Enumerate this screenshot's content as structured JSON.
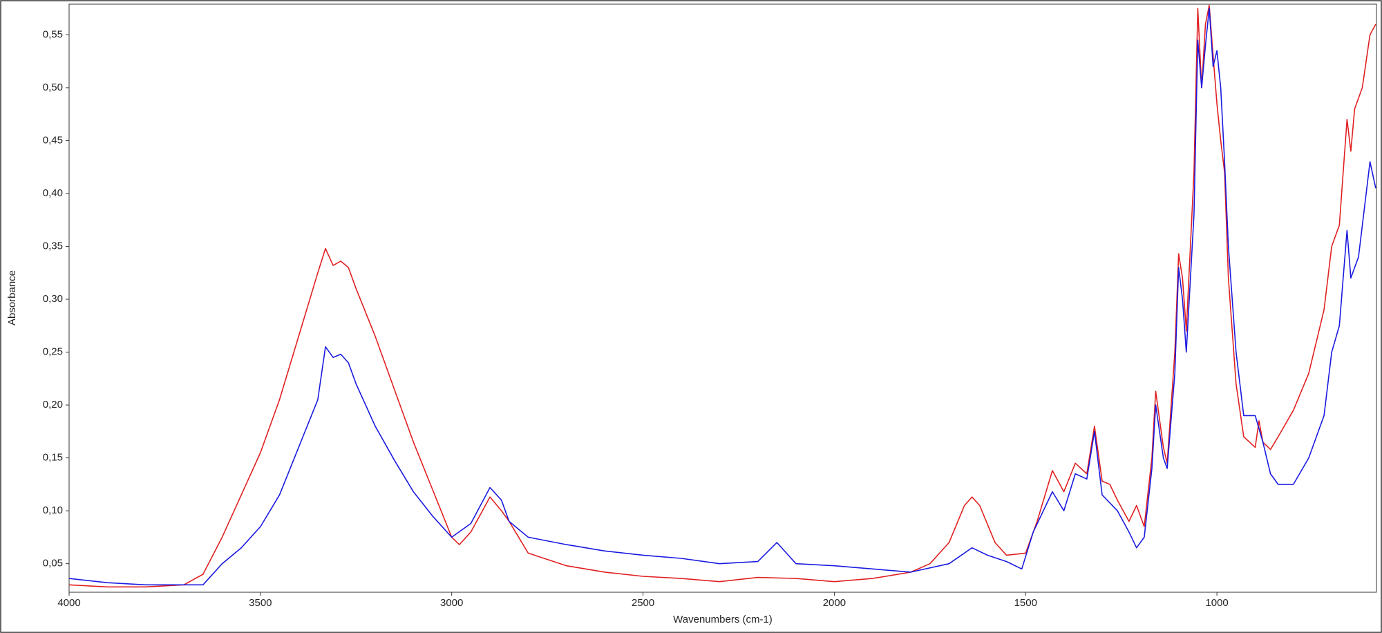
{
  "chart_data": {
    "type": "line",
    "x_label": "Wavenumbers (cm-1)",
    "y_label": "Absorbance",
    "xlim": [
      4000,
      583
    ],
    "xticks": [
      4000,
      3500,
      3000,
      2500,
      2000,
      1500,
      1000
    ],
    "ylim": [
      0.023,
      0.579
    ],
    "yticks": [
      {
        "value": 0.05,
        "label": "0,05"
      },
      {
        "value": 0.1,
        "label": "0,10"
      },
      {
        "value": 0.15,
        "label": "0,15"
      },
      {
        "value": 0.2,
        "label": "0,20"
      },
      {
        "value": 0.25,
        "label": "0,25"
      },
      {
        "value": 0.3,
        "label": "0,30"
      },
      {
        "value": 0.35,
        "label": "0,35"
      },
      {
        "value": 0.4,
        "label": "0,40"
      },
      {
        "value": 0.45,
        "label": "0,45"
      },
      {
        "value": 0.5,
        "label": "0,50"
      },
      {
        "value": 0.55,
        "label": "0,55"
      }
    ],
    "series": [
      {
        "color": "#e02020",
        "x": [
          4000,
          3900,
          3800,
          3700,
          3650,
          3600,
          3550,
          3500,
          3450,
          3400,
          3350,
          3330,
          3310,
          3290,
          3270,
          3250,
          3200,
          3150,
          3100,
          3050,
          3000,
          2980,
          2950,
          2900,
          2870,
          2850,
          2800,
          2700,
          2600,
          2500,
          2400,
          2300,
          2200,
          2100,
          2000,
          1900,
          1800,
          1750,
          1700,
          1660,
          1640,
          1620,
          1580,
          1550,
          1500,
          1470,
          1430,
          1400,
          1370,
          1340,
          1320,
          1300,
          1280,
          1260,
          1230,
          1210,
          1190,
          1170,
          1160,
          1140,
          1130,
          1110,
          1100,
          1090,
          1080,
          1060,
          1050,
          1040,
          1030,
          1020,
          1010,
          1000,
          990,
          980,
          970,
          950,
          930,
          900,
          890,
          880,
          860,
          840,
          800,
          760,
          720,
          700,
          680,
          670,
          660,
          650,
          640,
          620,
          600,
          585
        ],
        "values": [
          0.03,
          0.028,
          0.028,
          0.03,
          0.04,
          0.075,
          0.115,
          0.155,
          0.205,
          0.265,
          0.325,
          0.348,
          0.332,
          0.336,
          0.33,
          0.31,
          0.265,
          0.215,
          0.165,
          0.12,
          0.075,
          0.068,
          0.08,
          0.113,
          0.1,
          0.09,
          0.06,
          0.048,
          0.042,
          0.038,
          0.036,
          0.033,
          0.037,
          0.036,
          0.033,
          0.036,
          0.042,
          0.05,
          0.07,
          0.105,
          0.113,
          0.105,
          0.07,
          0.058,
          0.06,
          0.09,
          0.138,
          0.118,
          0.145,
          0.135,
          0.18,
          0.128,
          0.125,
          0.11,
          0.09,
          0.105,
          0.085,
          0.15,
          0.213,
          0.16,
          0.145,
          0.25,
          0.343,
          0.32,
          0.27,
          0.42,
          0.575,
          0.5,
          0.56,
          0.578,
          0.53,
          0.485,
          0.45,
          0.42,
          0.32,
          0.22,
          0.17,
          0.16,
          0.185,
          0.165,
          0.158,
          0.17,
          0.195,
          0.23,
          0.29,
          0.35,
          0.37,
          0.42,
          0.47,
          0.44,
          0.48,
          0.5,
          0.55,
          0.56
        ]
      },
      {
        "color": "#1a1ae0",
        "x": [
          4000,
          3900,
          3800,
          3700,
          3650,
          3600,
          3550,
          3500,
          3450,
          3400,
          3350,
          3330,
          3310,
          3290,
          3270,
          3250,
          3200,
          3150,
          3100,
          3050,
          3000,
          2950,
          2900,
          2870,
          2850,
          2800,
          2700,
          2600,
          2500,
          2400,
          2300,
          2200,
          2150,
          2100,
          2000,
          1900,
          1800,
          1700,
          1640,
          1600,
          1550,
          1510,
          1480,
          1430,
          1400,
          1370,
          1340,
          1320,
          1300,
          1260,
          1230,
          1210,
          1190,
          1170,
          1160,
          1140,
          1130,
          1110,
          1100,
          1090,
          1080,
          1060,
          1050,
          1040,
          1030,
          1020,
          1010,
          1000,
          990,
          980,
          970,
          950,
          930,
          900,
          880,
          860,
          840,
          800,
          760,
          720,
          700,
          680,
          670,
          660,
          650,
          630,
          610,
          600,
          585
        ],
        "values": [
          0.036,
          0.032,
          0.03,
          0.03,
          0.03,
          0.05,
          0.065,
          0.085,
          0.115,
          0.16,
          0.205,
          0.255,
          0.245,
          0.248,
          0.24,
          0.22,
          0.18,
          0.148,
          0.118,
          0.095,
          0.075,
          0.088,
          0.122,
          0.11,
          0.09,
          0.075,
          0.068,
          0.062,
          0.058,
          0.055,
          0.05,
          0.052,
          0.07,
          0.05,
          0.048,
          0.045,
          0.042,
          0.05,
          0.065,
          0.058,
          0.052,
          0.045,
          0.08,
          0.118,
          0.1,
          0.135,
          0.13,
          0.175,
          0.115,
          0.1,
          0.08,
          0.065,
          0.075,
          0.14,
          0.2,
          0.15,
          0.14,
          0.23,
          0.33,
          0.3,
          0.25,
          0.38,
          0.545,
          0.5,
          0.54,
          0.575,
          0.52,
          0.535,
          0.5,
          0.43,
          0.35,
          0.25,
          0.19,
          0.19,
          0.165,
          0.135,
          0.125,
          0.125,
          0.15,
          0.19,
          0.25,
          0.275,
          0.32,
          0.365,
          0.32,
          0.34,
          0.4,
          0.43,
          0.405
        ]
      }
    ]
  }
}
